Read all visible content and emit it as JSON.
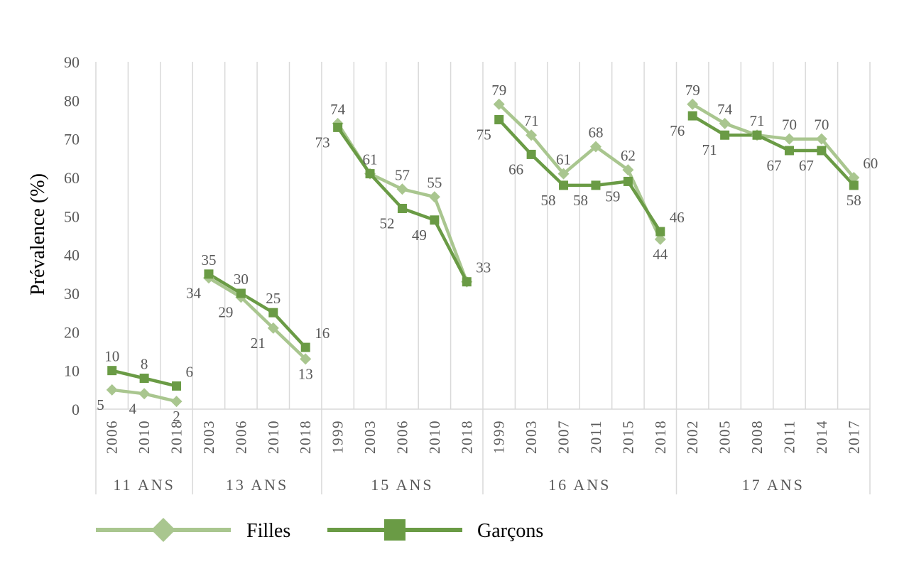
{
  "chart_data": {
    "type": "line",
    "ylabel": "Prévalence (%)",
    "ylim": [
      0,
      90
    ],
    "yticks": [
      0,
      10,
      20,
      30,
      40,
      50,
      60,
      70,
      80,
      90
    ],
    "grid": "vertical",
    "legend_position": "bottom",
    "groups": [
      {
        "label": "11 ANS",
        "years": [
          "2006",
          "2010",
          "2018"
        ]
      },
      {
        "label": "13 ANS",
        "years": [
          "2003",
          "2006",
          "2010",
          "2018"
        ]
      },
      {
        "label": "15 ANS",
        "years": [
          "1999",
          "2003",
          "2006",
          "2010",
          "2018"
        ]
      },
      {
        "label": "16 ANS",
        "years": [
          "1999",
          "2003",
          "2007",
          "2011",
          "2015",
          "2018"
        ]
      },
      {
        "label": "17 ANS",
        "years": [
          "2002",
          "2005",
          "2008",
          "2011",
          "2014",
          "2017"
        ]
      }
    ],
    "series": [
      {
        "name": "Filles",
        "color": "#a9c68f",
        "marker": "diamond",
        "values": [
          [
            5,
            4,
            2
          ],
          [
            34,
            29,
            21,
            13
          ],
          [
            74,
            61,
            57,
            55,
            33
          ],
          [
            79,
            71,
            61,
            68,
            62,
            44
          ],
          [
            79,
            74,
            71,
            70,
            70,
            60
          ]
        ]
      },
      {
        "name": "Garçons",
        "color": "#6a9b45",
        "marker": "square",
        "values": [
          [
            10,
            8,
            6
          ],
          [
            35,
            30,
            25,
            16
          ],
          [
            73,
            61,
            52,
            49,
            33
          ],
          [
            75,
            66,
            58,
            58,
            59,
            46
          ],
          [
            76,
            71,
            71,
            67,
            67,
            58
          ]
        ]
      }
    ]
  }
}
